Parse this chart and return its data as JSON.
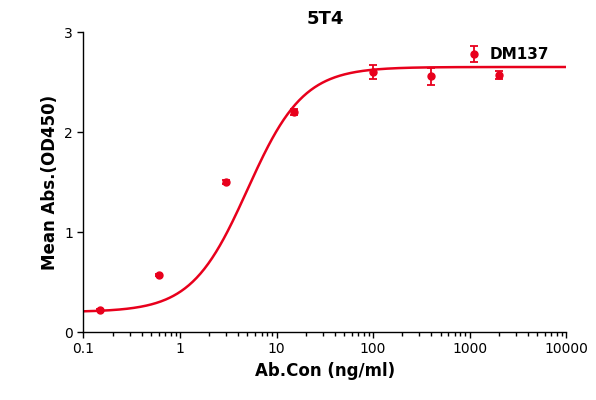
{
  "title": "5T4",
  "xlabel": "Ab.Con (ng/ml)",
  "ylabel": "Mean Abs.(OD450)",
  "legend_label": "DM137",
  "color": "#E8001C",
  "x_data": [
    0.15,
    0.6,
    3.0,
    15.0,
    100.0,
    400.0,
    2000.0
  ],
  "y_data": [
    0.22,
    0.57,
    1.5,
    2.2,
    2.6,
    2.555,
    2.575
  ],
  "y_err": [
    0.01,
    0.01,
    0.02,
    0.03,
    0.07,
    0.09,
    0.04
  ],
  "ylim": [
    0,
    3.0
  ],
  "yticks": [
    0,
    1,
    2,
    3
  ],
  "xtick_labels": [
    "0.1",
    "1",
    "10",
    "100",
    "1000",
    "10000"
  ],
  "xtick_values": [
    0.1,
    1,
    10,
    100,
    1000,
    10000
  ],
  "marker": "o",
  "markersize": 5,
  "linewidth": 1.8,
  "capsize": 3,
  "title_fontsize": 13,
  "label_fontsize": 12,
  "tick_fontsize": 10,
  "legend_fontsize": 11,
  "background_color": "#ffffff"
}
